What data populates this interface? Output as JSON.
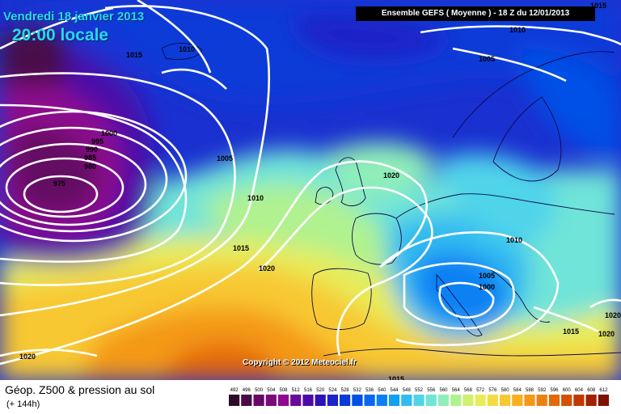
{
  "header": {
    "date": "Vendredi 18 janvier 2013",
    "time": "20:00 locale"
  },
  "model": {
    "title": "Ensemble GEFS ( Moyenne )  -  18 Z du 12/01/2013"
  },
  "copyright": "Copyright © 2012 Meteociel.fr",
  "footer": {
    "title": "Géop. Z500 & pression au sol",
    "subtitle": "(+ 144h)"
  },
  "isobar_labels": [
    "1015",
    "1010",
    "1010",
    "1005",
    "1000",
    "995",
    "990",
    "985",
    "980",
    "975",
    "1005",
    "1010",
    "1015",
    "1020",
    "1020",
    "1010",
    "1005",
    "1000",
    "1015",
    "1020",
    "1020",
    "1015",
    "1020",
    "1015"
  ],
  "legend": {
    "labels": [
      "492",
      "496",
      "500",
      "504",
      "508",
      "512",
      "516",
      "520",
      "524",
      "528",
      "532",
      "536",
      "540",
      "544",
      "548",
      "552",
      "556",
      "560",
      "564",
      "568",
      "572",
      "576",
      "580",
      "584",
      "588",
      "592",
      "596",
      "600",
      "604",
      "608",
      "612"
    ],
    "colors": [
      "#2e0a2a",
      "#4a0a4a",
      "#640a64",
      "#7a0a7a",
      "#8e0a8e",
      "#6a0a9a",
      "#4c0aa8",
      "#3010b8",
      "#1a24c8",
      "#0a3ad8",
      "#0050e6",
      "#0a66f0",
      "#0a80f4",
      "#10a0f4",
      "#30bcf0",
      "#50d4ea",
      "#70e4d8",
      "#90eeb8",
      "#b0f290",
      "#cff070",
      "#e8ec58",
      "#f4dc40",
      "#f8c830",
      "#f8b020",
      "#f49818",
      "#ee8010",
      "#e46808",
      "#d45004",
      "#c03802",
      "#a02000",
      "#801000"
    ]
  },
  "colors": {
    "header_text": "#29d6ff",
    "model_box_bg": "#000000",
    "isobar": "#ffffff"
  }
}
